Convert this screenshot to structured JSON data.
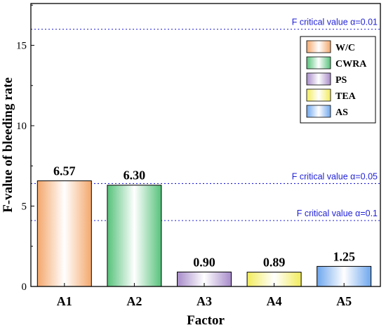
{
  "chart_data": {
    "type": "bar",
    "xlabel": "Factor",
    "ylabel": "F-value of bleeding rate",
    "ylim": [
      0,
      17.6
    ],
    "yticks": [
      0,
      5,
      10,
      15
    ],
    "grid": false,
    "legend_position": "top-right",
    "categories": [
      "A1",
      "A2",
      "A3",
      "A4",
      "A5"
    ],
    "values": [
      6.57,
      6.3,
      0.9,
      0.89,
      1.25
    ],
    "value_labels": [
      "6.57",
      "6.30",
      "0.90",
      "0.89",
      "1.25"
    ],
    "series": [
      {
        "name": "W/C",
        "category": "A1",
        "value": 6.57,
        "color": "#f4a76c"
      },
      {
        "name": "CWRA",
        "category": "A2",
        "value": 6.3,
        "color": "#56c27a"
      },
      {
        "name": "PS",
        "category": "A3",
        "value": 0.9,
        "color": "#a78bc9"
      },
      {
        "name": "TEA",
        "category": "A4",
        "value": 0.89,
        "color": "#f2ec5c"
      },
      {
        "name": "AS",
        "category": "A5",
        "value": 1.25,
        "color": "#6ea7ee"
      }
    ],
    "reference_lines": [
      {
        "label": "F critical value α=0.01",
        "value": 16.0,
        "color": "#1f1fd6"
      },
      {
        "label": "F critical value α=0.05",
        "value": 6.4,
        "color": "#1f1fd6"
      },
      {
        "label": "F critical value α=0.1",
        "value": 4.1,
        "color": "#1f1fd6"
      }
    ]
  }
}
